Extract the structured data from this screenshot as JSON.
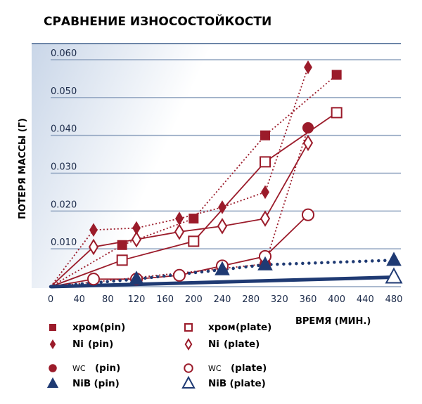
{
  "chart_data": {
    "type": "line",
    "title": "СРАВНЕНИЕ ИЗНОСОСТОЙКОСТИ",
    "xlabel": "ВРЕМЯ (МИН.)",
    "ylabel": "ПОТЕРЯ МАССЫ (Г)",
    "xlim": [
      0,
      480
    ],
    "ylim": [
      0,
      0.06
    ],
    "xticks": [
      "0",
      "40",
      "80",
      "120",
      "160",
      "200",
      "240",
      "280",
      "320",
      "360",
      "400",
      "440",
      "480"
    ],
    "yticks": [
      "0.010",
      "0.020",
      "0.030",
      "0.040",
      "0.050",
      "0.060"
    ],
    "grid": true,
    "legend_position": "bottom",
    "colors": {
      "red": "#9b1b2a",
      "navy": "#1f3a73",
      "grid": "#8fa3bf"
    },
    "series": [
      {
        "name": "хром (pin)",
        "label_a": "хром",
        "label_b": "(pin)",
        "marker": "square-filled",
        "color": "#9b1b2a",
        "line": "dotted",
        "x": [
          0,
          100,
          200,
          300,
          400
        ],
        "y": [
          0,
          0.011,
          0.018,
          0.04,
          0.056
        ]
      },
      {
        "name": "хром (plate)",
        "label_a": "хром",
        "label_b": "(plate)",
        "marker": "square-open",
        "color": "#9b1b2a",
        "line": "solid",
        "x": [
          0,
          100,
          200,
          300,
          400
        ],
        "y": [
          0,
          0.007,
          0.012,
          0.033,
          0.046
        ]
      },
      {
        "name": "Ni (pin)",
        "label_a": "Ni",
        "label_b": "(pin)",
        "marker": "diamond-filled",
        "color": "#9b1b2a",
        "line": "dotted",
        "x": [
          0,
          60,
          120,
          180,
          240,
          300,
          360
        ],
        "y": [
          0,
          0.015,
          0.0155,
          0.018,
          0.021,
          0.025,
          0.058
        ]
      },
      {
        "name": "Ni (plate)",
        "label_a": "Ni",
        "label_b": "(plate)",
        "marker": "diamond-open",
        "color": "#9b1b2a",
        "line": "solid",
        "x": [
          0,
          60,
          120,
          180,
          240,
          300,
          360
        ],
        "y": [
          0,
          0.0105,
          0.0125,
          0.0145,
          0.016,
          0.018,
          0.038
        ]
      },
      {
        "name": "WC (pin)",
        "label_a": "WC",
        "label_b": "(pin)",
        "marker": "circle-filled",
        "color": "#9b1b2a",
        "line": "dotted",
        "x": [
          0,
          300,
          360
        ],
        "y": [
          0,
          0.006,
          0.042
        ]
      },
      {
        "name": "WC (plate)",
        "label_a": "WC",
        "label_b": "(plate)",
        "marker": "circle-open",
        "color": "#9b1b2a",
        "line": "solid",
        "x": [
          0,
          60,
          120,
          180,
          240,
          300,
          360
        ],
        "y": [
          0,
          0.002,
          0.002,
          0.003,
          0.0055,
          0.008,
          0.019
        ]
      },
      {
        "name": "NiB (pin)",
        "label_a": "NiB",
        "label_b": "(pin)",
        "marker": "triangle-filled",
        "color": "#1f3a73",
        "line": "dots-heavy",
        "x": [
          0,
          120,
          240,
          300,
          480
        ],
        "y": [
          0,
          0.002,
          0.0045,
          0.0058,
          0.007
        ]
      },
      {
        "name": "NiB (plate)",
        "label_a": "NiB",
        "label_b": "(plate)",
        "marker": "triangle-open",
        "color": "#1f3a73",
        "line": "thick",
        "x": [
          0,
          480
        ],
        "y": [
          0,
          0.0025
        ]
      }
    ]
  }
}
